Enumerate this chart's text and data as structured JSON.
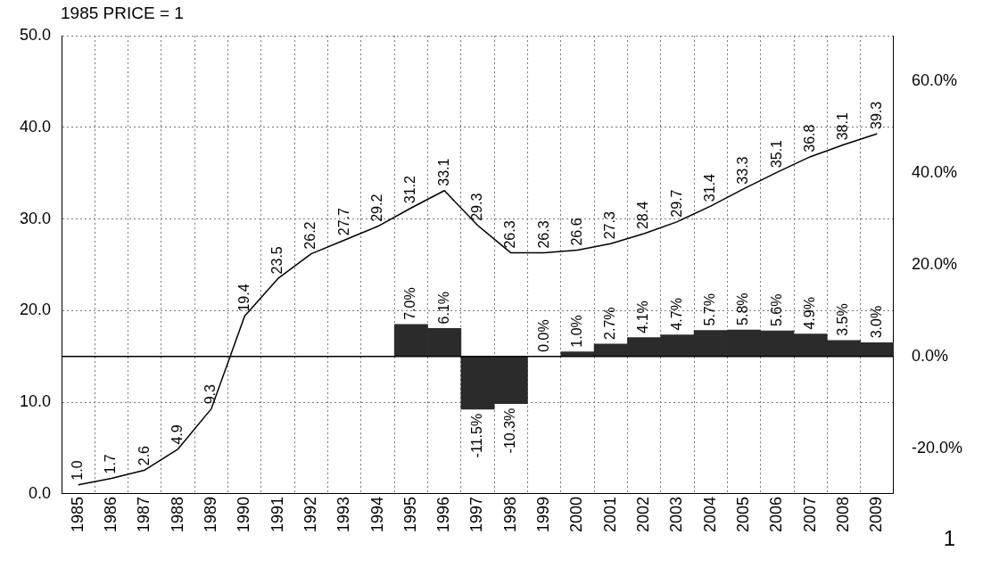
{
  "chart_data": {
    "type": "line",
    "ylabel": "1985 PRICE = 1",
    "categories": [
      "1985",
      "1986",
      "1987",
      "1988",
      "1989",
      "1990",
      "1991",
      "1992",
      "1993",
      "1994",
      "1995",
      "1996",
      "1997",
      "1998",
      "1999",
      "2000",
      "2001",
      "2002",
      "2003",
      "2004",
      "2005",
      "2006",
      "2007",
      "2008",
      "2009"
    ],
    "series": [
      {
        "type": "bar",
        "axis": "y2",
        "color": "#2b2b2b",
        "values": [
          null,
          null,
          null,
          null,
          null,
          null,
          null,
          null,
          null,
          null,
          7.0,
          6.1,
          -11.5,
          -10.3,
          0.0,
          1.0,
          2.7,
          4.1,
          4.7,
          5.7,
          5.8,
          5.6,
          4.9,
          3.5,
          3.0
        ],
        "value_labels": [
          null,
          null,
          null,
          null,
          null,
          null,
          null,
          null,
          null,
          null,
          "7.0%",
          "6.1%",
          "-11.5%",
          "-10.3%",
          "0.0%",
          "1.0%",
          "2.7%",
          "4.1%",
          "4.7%",
          "5.7%",
          "5.8%",
          "5.6%",
          "4.9%",
          "3.5%",
          "3.0%"
        ]
      },
      {
        "color": "#000000",
        "values": [
          1.0,
          1.7,
          2.6,
          4.9,
          9.3,
          19.4,
          23.5,
          26.2,
          27.7,
          29.2,
          31.2,
          33.1,
          29.3,
          26.3,
          26.3,
          26.6,
          27.3,
          28.4,
          29.7,
          31.4,
          33.3,
          35.1,
          36.8,
          38.1,
          39.3
        ],
        "value_labels": [
          "1.0",
          "1.7",
          "2.6",
          "4.9",
          "9.3",
          "19.4",
          "23.5",
          "26.2",
          "27.7",
          "29.2",
          "31.2",
          "33.1",
          "29.3",
          "26.3",
          "26.3",
          "26.6",
          "27.3",
          "28.4",
          "29.7",
          "31.4",
          "33.3",
          "35.1",
          "36.8",
          "38.1",
          "39.3"
        ]
      }
    ],
    "ylim": [
      0,
      50
    ],
    "yticks": [
      {
        "value": 0,
        "label": "0.0"
      },
      {
        "value": 10,
        "label": "10.0"
      },
      {
        "value": 20,
        "label": "20.0"
      },
      {
        "value": 30,
        "label": "30.0"
      },
      {
        "value": 40,
        "label": "40.0"
      },
      {
        "value": 50,
        "label": "50.0"
      }
    ],
    "y2lim": [
      -30,
      70
    ],
    "y2ticks": [
      {
        "value": -20,
        "label": "-20.0%"
      },
      {
        "value": 0,
        "label": "0.0%"
      },
      {
        "value": 20,
        "label": "20.0%"
      },
      {
        "value": 40,
        "label": "40.0%"
      },
      {
        "value": 60,
        "label": "60.0%"
      }
    ],
    "ref_lines": [
      {
        "axis": "y2",
        "value": 0,
        "color": "#000000"
      }
    ],
    "grid": true,
    "marker": "none",
    "line_style": "solid",
    "legend": false,
    "annotations": [
      "1"
    ]
  }
}
